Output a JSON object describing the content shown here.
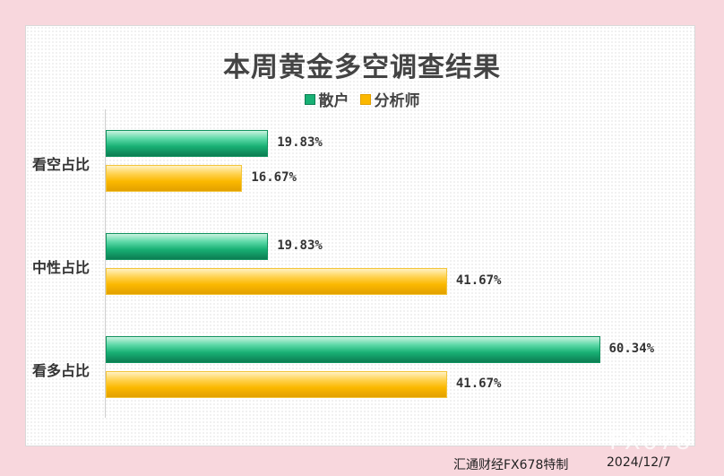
{
  "chart_data": {
    "type": "bar",
    "orientation": "horizontal",
    "title": "本周黄金多空调查结果",
    "categories": [
      "看空占比",
      "中性占比",
      "看多占比"
    ],
    "series": [
      {
        "name": "散户",
        "values": [
          19.83,
          19.83,
          60.34
        ],
        "labels": [
          "19.83%",
          "19.83%",
          "60.34%"
        ],
        "color": "#18b074"
      },
      {
        "name": "分析师",
        "values": [
          16.67,
          41.67,
          41.67
        ],
        "labels": [
          "16.67%",
          "41.67%",
          "41.67%"
        ],
        "color": "#fbb800"
      }
    ],
    "xlim": [
      0,
      100
    ],
    "legend_position": "top",
    "grid": false
  },
  "footer": {
    "source": "汇通财经FX678特制",
    "date": "2024/12/7",
    "watermark": "FX678"
  }
}
